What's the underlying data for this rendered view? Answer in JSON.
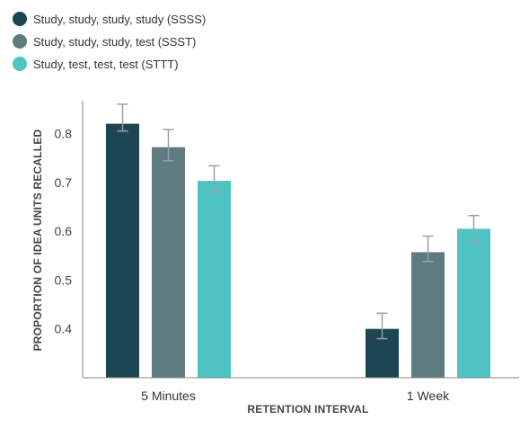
{
  "chart_data": {
    "type": "bar",
    "title": "",
    "xlabel": "RETENTION INTERVAL",
    "ylabel": "PROPORTION OF IDEA UNITS RECALLED",
    "categories": [
      "5 Minutes",
      "1 Week"
    ],
    "ylim": [
      0.3,
      0.88
    ],
    "yticks": [
      "0.4",
      "0.5",
      "0.6",
      "0.7",
      "0.8"
    ],
    "grid": false,
    "legend_position": "top-left",
    "series": [
      {
        "name": "Study, study, study, study (SSSS)",
        "color": "#1c4651",
        "values": [
          0.82,
          0.4
        ],
        "error_low": [
          0.805,
          0.38
        ],
        "error_high": [
          0.86,
          0.432
        ]
      },
      {
        "name": "Study, study, study, test (SSST)",
        "color": "#5d7b80",
        "values": [
          0.772,
          0.557
        ],
        "error_low": [
          0.744,
          0.538
        ],
        "error_high": [
          0.808,
          0.59
        ]
      },
      {
        "name": "Study, test, test, test (STTT)",
        "color": "#4ec3c3",
        "values": [
          0.703,
          0.605
        ],
        "error_low": [
          0.68,
          0.578
        ],
        "error_high": [
          0.734,
          0.632
        ]
      }
    ]
  }
}
